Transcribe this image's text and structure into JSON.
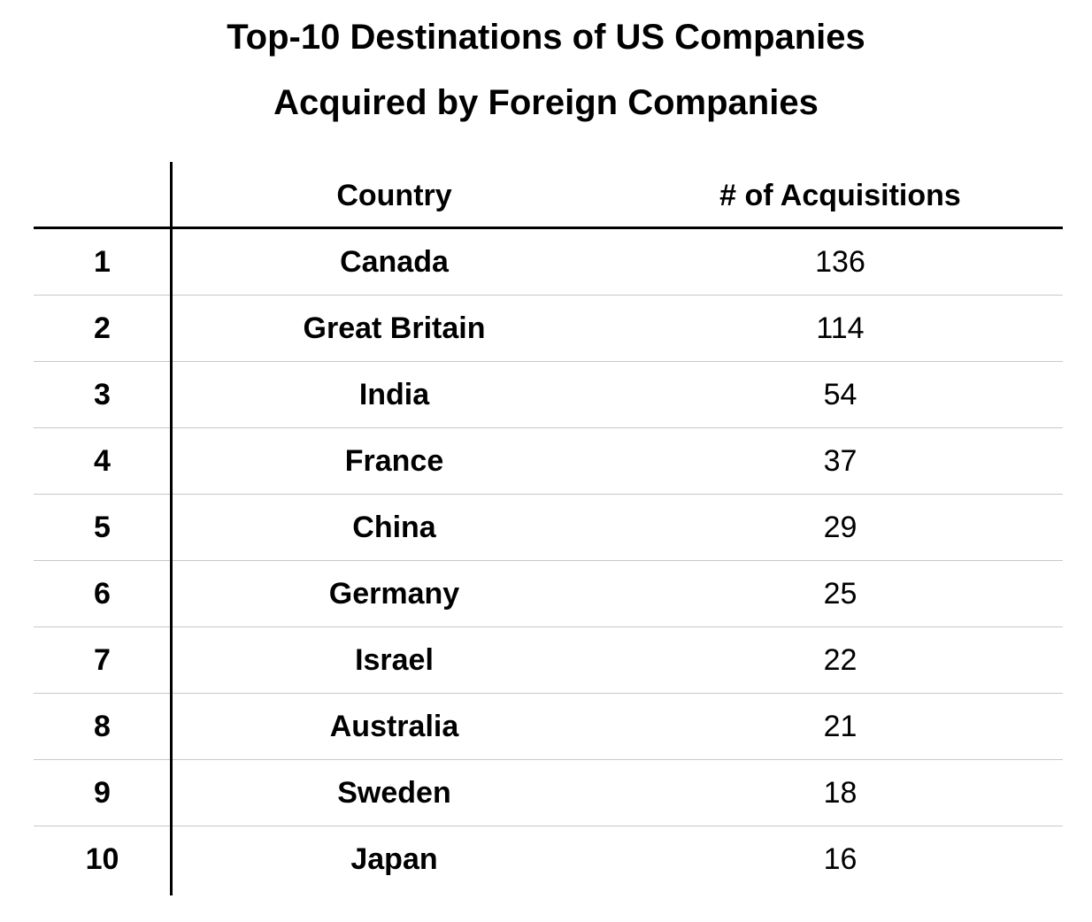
{
  "title": {
    "line1": "Top-10 Destinations of US Companies",
    "line2": "Acquired by Foreign Companies"
  },
  "table": {
    "headers": {
      "rank": "",
      "country": "Country",
      "count": "# of Acquisitions"
    },
    "rows": [
      {
        "rank": "1",
        "country": "Canada",
        "count": "136"
      },
      {
        "rank": "2",
        "country": "Great Britain",
        "count": "114"
      },
      {
        "rank": "3",
        "country": "India",
        "count": "54"
      },
      {
        "rank": "4",
        "country": "France",
        "count": "37"
      },
      {
        "rank": "5",
        "country": "China",
        "count": "29"
      },
      {
        "rank": "6",
        "country": "Germany",
        "count": "25"
      },
      {
        "rank": "7",
        "country": "Israel",
        "count": "22"
      },
      {
        "rank": "8",
        "country": "Australia",
        "count": "21"
      },
      {
        "rank": "9",
        "country": "Sweden",
        "count": "18"
      },
      {
        "rank": "10",
        "country": "Japan",
        "count": "16"
      }
    ]
  },
  "chart_data": {
    "type": "table",
    "title": "Top-10 Destinations of US Companies Acquired by Foreign Companies",
    "columns": [
      "",
      "Country",
      "# of Acquisitions"
    ],
    "categories": [
      "Canada",
      "Great Britain",
      "India",
      "France",
      "China",
      "Germany",
      "Israel",
      "Australia",
      "Sweden",
      "Japan"
    ],
    "series": [
      {
        "name": "# of Acquisitions",
        "values": [
          136,
          114,
          54,
          37,
          29,
          25,
          22,
          21,
          18,
          16
        ]
      }
    ],
    "ranks": [
      1,
      2,
      3,
      4,
      5,
      6,
      7,
      8,
      9,
      10
    ]
  }
}
